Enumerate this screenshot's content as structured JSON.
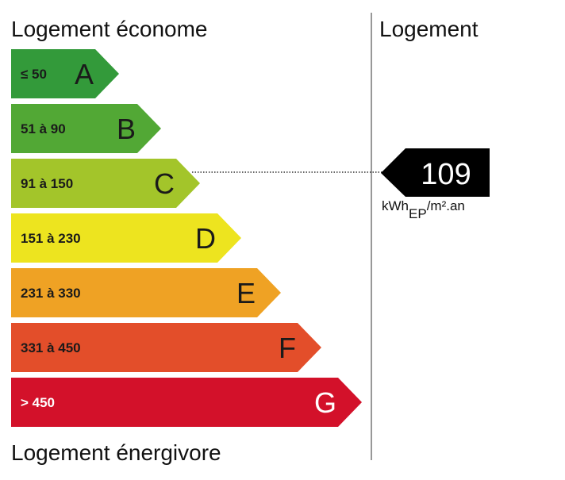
{
  "header": {
    "left": "Logement économe",
    "right": "Logement"
  },
  "footer": "Logement énergivore",
  "classes": [
    {
      "range": "≤ 50",
      "letter": "A",
      "color": "#339a3a"
    },
    {
      "range": "51 à 90",
      "letter": "B",
      "color": "#52a835"
    },
    {
      "range": "91 à 150",
      "letter": "C",
      "color": "#a3c52a"
    },
    {
      "range": "151 à 230",
      "letter": "D",
      "color": "#ede41f"
    },
    {
      "range": "231 à 330",
      "letter": "E",
      "color": "#efa224"
    },
    {
      "range": "331 à 450",
      "letter": "F",
      "color": "#e34e2a"
    },
    {
      "range": "> 450",
      "letter": "G",
      "color": "#d3112a"
    }
  ],
  "indicator": {
    "value": "109",
    "unit": {
      "main": "kWh",
      "sub": "EP",
      "suffix": "/m².an"
    }
  }
}
